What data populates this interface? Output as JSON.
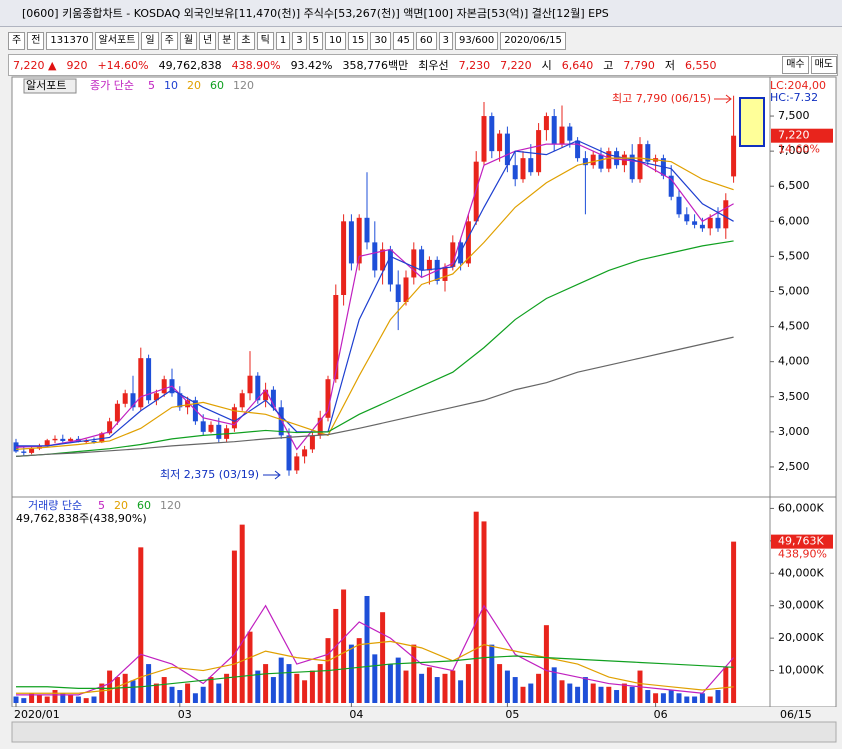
{
  "header": {
    "title": "[0600] 키움종합차트 - KOSDAQ 외국인보유[11,470(천)] 주식수[53,267(천)] 액면[100] 자본금[53(억)] 결산[12월] EPS",
    "toolbar": [
      "주",
      "전",
      "131370",
      "알서포트",
      "일",
      "주",
      "월",
      "년",
      "분",
      "초",
      "틱",
      "1",
      "3",
      "5",
      "10",
      "15",
      "30",
      "45",
      "60",
      "3",
      "93/600",
      "2020/06/15"
    ],
    "quote": [
      {
        "text": "7,220 ▲",
        "color": "#e01010"
      },
      {
        "text": "920",
        "color": "#e01010"
      },
      {
        "text": "+14.60%",
        "color": "#e01010"
      },
      {
        "text": "49,762,838",
        "color": "#000000"
      },
      {
        "text": "438.90%",
        "color": "#e01010"
      },
      {
        "text": "93.42%",
        "color": "#000000"
      },
      {
        "text": "358,776백만",
        "color": "#000000"
      },
      {
        "text": "최우선",
        "color": "#000000"
      },
      {
        "text": "7,230",
        "color": "#e01010"
      },
      {
        "text": "7,220",
        "color": "#e01010"
      },
      {
        "text": "시",
        "color": "#000000"
      },
      {
        "text": "6,640",
        "color": "#e01010"
      },
      {
        "text": "고",
        "color": "#000000"
      },
      {
        "text": "7,790",
        "color": "#e01010"
      },
      {
        "text": "저",
        "color": "#000000"
      },
      {
        "text": "6,550",
        "color": "#e01010"
      }
    ],
    "buttons": [
      "매수",
      "매도"
    ]
  },
  "chart_data": {
    "type": "candlestick",
    "up_color": "#e8241c",
    "down_color": "#1e4fd8",
    "price_legend": {
      "name": "알서포트",
      "label": "종가 단순",
      "periods": [
        {
          "text": "5",
          "color": "#c020c0"
        },
        {
          "text": "10",
          "color": "#1e3fd0"
        },
        {
          "text": "20",
          "color": "#e0a000"
        },
        {
          "text": "60",
          "color": "#10a020"
        },
        {
          "text": "120",
          "color": "#888888"
        }
      ]
    },
    "volume_legend": {
      "label": "거래량 단순",
      "periods": [
        {
          "text": "5",
          "color": "#c020c0"
        },
        {
          "text": "20",
          "color": "#e0a000"
        },
        {
          "text": "60",
          "color": "#10a020"
        },
        {
          "text": "120",
          "color": "#888888"
        }
      ],
      "summary": "49,762,838주(438,90%)"
    },
    "annotations": {
      "high": "최고 7,790 (06/15)",
      "low": "최저 2,375 (03/19)",
      "lc": "LC:204,00",
      "hc": "HC:-7.32",
      "last_pct": "14.60%",
      "last_volume_pct": "438,90%"
    },
    "last_price": {
      "value": 7220,
      "label": "7,220"
    },
    "last_volume": {
      "value": 49763,
      "label": "49,763K"
    },
    "ylim": [
      2100,
      7800
    ],
    "yticks": [
      {
        "value": 2500,
        "label": "2,500"
      },
      {
        "value": 3000,
        "label": "3,000"
      },
      {
        "value": 3500,
        "label": "3,500"
      },
      {
        "value": 4000,
        "label": "4,000"
      },
      {
        "value": 4500,
        "label": "4,500"
      },
      {
        "value": 5000,
        "label": "5,000"
      },
      {
        "value": 5500,
        "label": "5,500"
      },
      {
        "value": 6000,
        "label": "6,000"
      },
      {
        "value": 6500,
        "label": "6,500"
      },
      {
        "value": 7000,
        "label": "7,000"
      },
      {
        "value": 7500,
        "label": "7,500"
      }
    ],
    "vol_ylim": [
      0,
      62600
    ],
    "vol_yticks": [
      {
        "value": 10000,
        "label": "10,000K"
      },
      {
        "value": 20000,
        "label": "20,000K"
      },
      {
        "value": 30000,
        "label": "30,000K"
      },
      {
        "value": 40000,
        "label": "40,000K"
      },
      {
        "value": 50000,
        "label": "50,000K"
      },
      {
        "value": 60000,
        "label": "60,000K"
      }
    ],
    "x_labels": [
      {
        "index": 0,
        "label": "2020/01"
      },
      {
        "index": 21,
        "label": "03"
      },
      {
        "index": 43,
        "label": "04"
      },
      {
        "index": 63,
        "label": "05"
      },
      {
        "index": 82,
        "label": "06"
      }
    ],
    "end_label": "06/15",
    "candles": [
      [
        2850,
        2900,
        2700,
        2720
      ],
      [
        2720,
        2780,
        2650,
        2700
      ],
      [
        2700,
        2800,
        2680,
        2760
      ],
      [
        2760,
        2830,
        2740,
        2800
      ],
      [
        2800,
        2900,
        2780,
        2880
      ],
      [
        2880,
        2950,
        2840,
        2900
      ],
      [
        2900,
        2960,
        2850,
        2870
      ],
      [
        2870,
        2920,
        2840,
        2900
      ],
      [
        2900,
        2940,
        2850,
        2860
      ],
      [
        2860,
        2900,
        2830,
        2870
      ],
      [
        2870,
        2920,
        2830,
        2850
      ],
      [
        2850,
        3000,
        2840,
        2980
      ],
      [
        2980,
        3200,
        2960,
        3150
      ],
      [
        3150,
        3450,
        3100,
        3400
      ],
      [
        3400,
        3600,
        3350,
        3550
      ],
      [
        3550,
        3800,
        3300,
        3350
      ],
      [
        3350,
        4200,
        3300,
        4050
      ],
      [
        4050,
        4100,
        3400,
        3450
      ],
      [
        3450,
        3600,
        3380,
        3550
      ],
      [
        3550,
        3800,
        3500,
        3750
      ],
      [
        3750,
        3900,
        3500,
        3550
      ],
      [
        3550,
        3650,
        3300,
        3350
      ],
      [
        3350,
        3500,
        3250,
        3450
      ],
      [
        3450,
        3500,
        3100,
        3150
      ],
      [
        3150,
        3250,
        2950,
        3000
      ],
      [
        3000,
        3150,
        2980,
        3100
      ],
      [
        3100,
        3200,
        2850,
        2900
      ],
      [
        2900,
        3100,
        2850,
        3050
      ],
      [
        3050,
        3400,
        3000,
        3350
      ],
      [
        3350,
        3600,
        3300,
        3550
      ],
      [
        3550,
        4150,
        3450,
        3800
      ],
      [
        3800,
        3850,
        3400,
        3450
      ],
      [
        3450,
        3700,
        3350,
        3600
      ],
      [
        3600,
        3650,
        3300,
        3350
      ],
      [
        3350,
        3450,
        2900,
        2950
      ],
      [
        2950,
        3050,
        2375,
        2450
      ],
      [
        2450,
        2700,
        2400,
        2650
      ],
      [
        2650,
        2800,
        2550,
        2750
      ],
      [
        2750,
        3000,
        2700,
        2950
      ],
      [
        2950,
        3300,
        2900,
        3200
      ],
      [
        3200,
        3800,
        3150,
        3750
      ],
      [
        3750,
        5100,
        3700,
        4950
      ],
      [
        4950,
        6100,
        4800,
        6000
      ],
      [
        6000,
        6100,
        5300,
        5400
      ],
      [
        5400,
        6100,
        5300,
        6050
      ],
      [
        6050,
        6700,
        5600,
        5700
      ],
      [
        5700,
        6000,
        5200,
        5300
      ],
      [
        5300,
        5700,
        5100,
        5600
      ],
      [
        5600,
        5650,
        5000,
        5100
      ],
      [
        5100,
        5300,
        4450,
        4850
      ],
      [
        4850,
        5300,
        4800,
        5200
      ],
      [
        5200,
        5700,
        5100,
        5600
      ],
      [
        5600,
        5650,
        5200,
        5300
      ],
      [
        5300,
        5500,
        5100,
        5450
      ],
      [
        5450,
        5500,
        5100,
        5150
      ],
      [
        5150,
        5400,
        5000,
        5350
      ],
      [
        5350,
        5800,
        5300,
        5700
      ],
      [
        5700,
        5750,
        5300,
        5400
      ],
      [
        5400,
        6100,
        5350,
        6000
      ],
      [
        6000,
        7000,
        5950,
        6850
      ],
      [
        6850,
        7700,
        6800,
        7500
      ],
      [
        7500,
        7550,
        6900,
        7000
      ],
      [
        7000,
        7300,
        6850,
        7250
      ],
      [
        7250,
        7350,
        6700,
        6800
      ],
      [
        6800,
        7000,
        6500,
        6600
      ],
      [
        6600,
        7000,
        6550,
        6900
      ],
      [
        6900,
        7100,
        6650,
        6700
      ],
      [
        6700,
        7400,
        6650,
        7300
      ],
      [
        7300,
        7550,
        7150,
        7500
      ],
      [
        7500,
        7600,
        7000,
        7100
      ],
      [
        7100,
        7650,
        7050,
        7350
      ],
      [
        7350,
        7400,
        7050,
        7150
      ],
      [
        7150,
        7200,
        6850,
        6900
      ],
      [
        6900,
        7000,
        6100,
        6800
      ],
      [
        6800,
        7000,
        6750,
        6950
      ],
      [
        6950,
        7050,
        6700,
        6750
      ],
      [
        6750,
        7050,
        6700,
        7000
      ],
      [
        7000,
        7050,
        6750,
        6800
      ],
      [
        6800,
        7000,
        6700,
        6950
      ],
      [
        6950,
        7100,
        6550,
        6600
      ],
      [
        6600,
        7200,
        6550,
        7100
      ],
      [
        7100,
        7150,
        6800,
        6850
      ],
      [
        6850,
        6950,
        6700,
        6900
      ],
      [
        6900,
        6950,
        6600,
        6650
      ],
      [
        6650,
        6800,
        6300,
        6350
      ],
      [
        6350,
        6450,
        6050,
        6100
      ],
      [
        6100,
        6200,
        5950,
        6000
      ],
      [
        6000,
        6100,
        5900,
        5950
      ],
      [
        5950,
        6050,
        5850,
        5900
      ],
      [
        5900,
        6100,
        5800,
        6050
      ],
      [
        6050,
        6200,
        5850,
        5900
      ],
      [
        5900,
        6400,
        5750,
        6300
      ],
      [
        6640,
        7790,
        6550,
        7220
      ]
    ],
    "volume": [
      2000,
      1500,
      3000,
      2500,
      2000,
      4000,
      3000,
      2500,
      2000,
      1500,
      2000,
      6000,
      10000,
      8000,
      9000,
      7000,
      48000,
      12000,
      6000,
      8000,
      5000,
      4000,
      6000,
      3000,
      5000,
      8000,
      6000,
      9000,
      47000,
      55000,
      22000,
      10000,
      12000,
      8000,
      14000,
      12000,
      9000,
      7000,
      10000,
      12000,
      20000,
      29000,
      35000,
      18000,
      20000,
      33000,
      15000,
      28000,
      12000,
      14000,
      10000,
      18000,
      9000,
      11000,
      8000,
      9000,
      10000,
      7000,
      12000,
      59000,
      56000,
      18000,
      12000,
      10000,
      8000,
      5000,
      6000,
      9000,
      24000,
      11000,
      7000,
      6000,
      5000,
      8000,
      6000,
      5000,
      5000,
      4000,
      6000,
      5000,
      10000,
      4000,
      3000,
      3000,
      4000,
      3000,
      2000,
      2000,
      3000,
      2000,
      4000,
      11000,
      49763
    ],
    "ma_x": [
      0,
      4,
      8,
      12,
      16,
      20,
      24,
      28,
      32,
      36,
      40,
      44,
      48,
      52,
      56,
      60,
      64,
      68,
      72,
      76,
      80,
      84,
      88,
      92
    ],
    "price_ma": [
      {
        "name": "5",
        "color": "#c020c0",
        "values": [
          2780,
          2800,
          2880,
          3000,
          3500,
          3650,
          3200,
          3100,
          3600,
          2750,
          3300,
          5500,
          5600,
          5200,
          5400,
          6800,
          7000,
          7100,
          7100,
          6900,
          6850,
          6600,
          6000,
          6250
        ]
      },
      {
        "name": "10",
        "color": "#1e3fd0",
        "values": [
          2800,
          2800,
          2860,
          2920,
          3300,
          3600,
          3350,
          3150,
          3450,
          3000,
          3000,
          4600,
          5500,
          5300,
          5350,
          6200,
          7000,
          6950,
          7150,
          6950,
          6850,
          6750,
          6250,
          6000
        ]
      },
      {
        "name": "20",
        "color": "#e0a000",
        "values": [
          2750,
          2780,
          2820,
          2870,
          3050,
          3350,
          3420,
          3300,
          3250,
          3100,
          2950,
          3800,
          4600,
          5100,
          5250,
          5700,
          6200,
          6550,
          6800,
          6900,
          6900,
          6850,
          6600,
          6450
        ]
      },
      {
        "name": "60",
        "color": "#10a020",
        "values": [
          2650,
          2680,
          2720,
          2760,
          2820,
          2900,
          2950,
          2980,
          3020,
          2990,
          3000,
          3250,
          3450,
          3650,
          3850,
          4200,
          4600,
          4900,
          5100,
          5300,
          5450,
          5550,
          5650,
          5720
        ]
      },
      {
        "name": "120",
        "color": "#666666",
        "values": [
          2650,
          2680,
          2700,
          2730,
          2760,
          2800,
          2830,
          2860,
          2900,
          2930,
          2960,
          3050,
          3150,
          3250,
          3350,
          3450,
          3600,
          3700,
          3850,
          3950,
          4050,
          4150,
          4250,
          4350
        ]
      }
    ],
    "volume_ma": [
      {
        "name": "5",
        "color": "#c020c0",
        "values": [
          2500,
          2500,
          2500,
          6000,
          15000,
          12000,
          6000,
          15000,
          30000,
          12000,
          15000,
          25000,
          20000,
          12000,
          10000,
          30000,
          15000,
          10000,
          8000,
          6000,
          5000,
          4000,
          3000,
          14000
        ]
      },
      {
        "name": "20",
        "color": "#e0a000",
        "values": [
          3000,
          3000,
          3000,
          4000,
          8000,
          11000,
          10000,
          12000,
          16000,
          14000,
          13000,
          18000,
          19000,
          17000,
          13000,
          18000,
          16000,
          14000,
          12000,
          8000,
          6000,
          5000,
          4000,
          5000
        ]
      },
      {
        "name": "60",
        "color": "#10a020",
        "values": [
          5000,
          5000,
          4500,
          4500,
          5000,
          6000,
          7000,
          8000,
          9000,
          9500,
          10000,
          11000,
          12000,
          12500,
          13000,
          14000,
          14500,
          14000,
          13500,
          13000,
          12500,
          12000,
          11500,
          11000
        ]
      }
    ]
  }
}
